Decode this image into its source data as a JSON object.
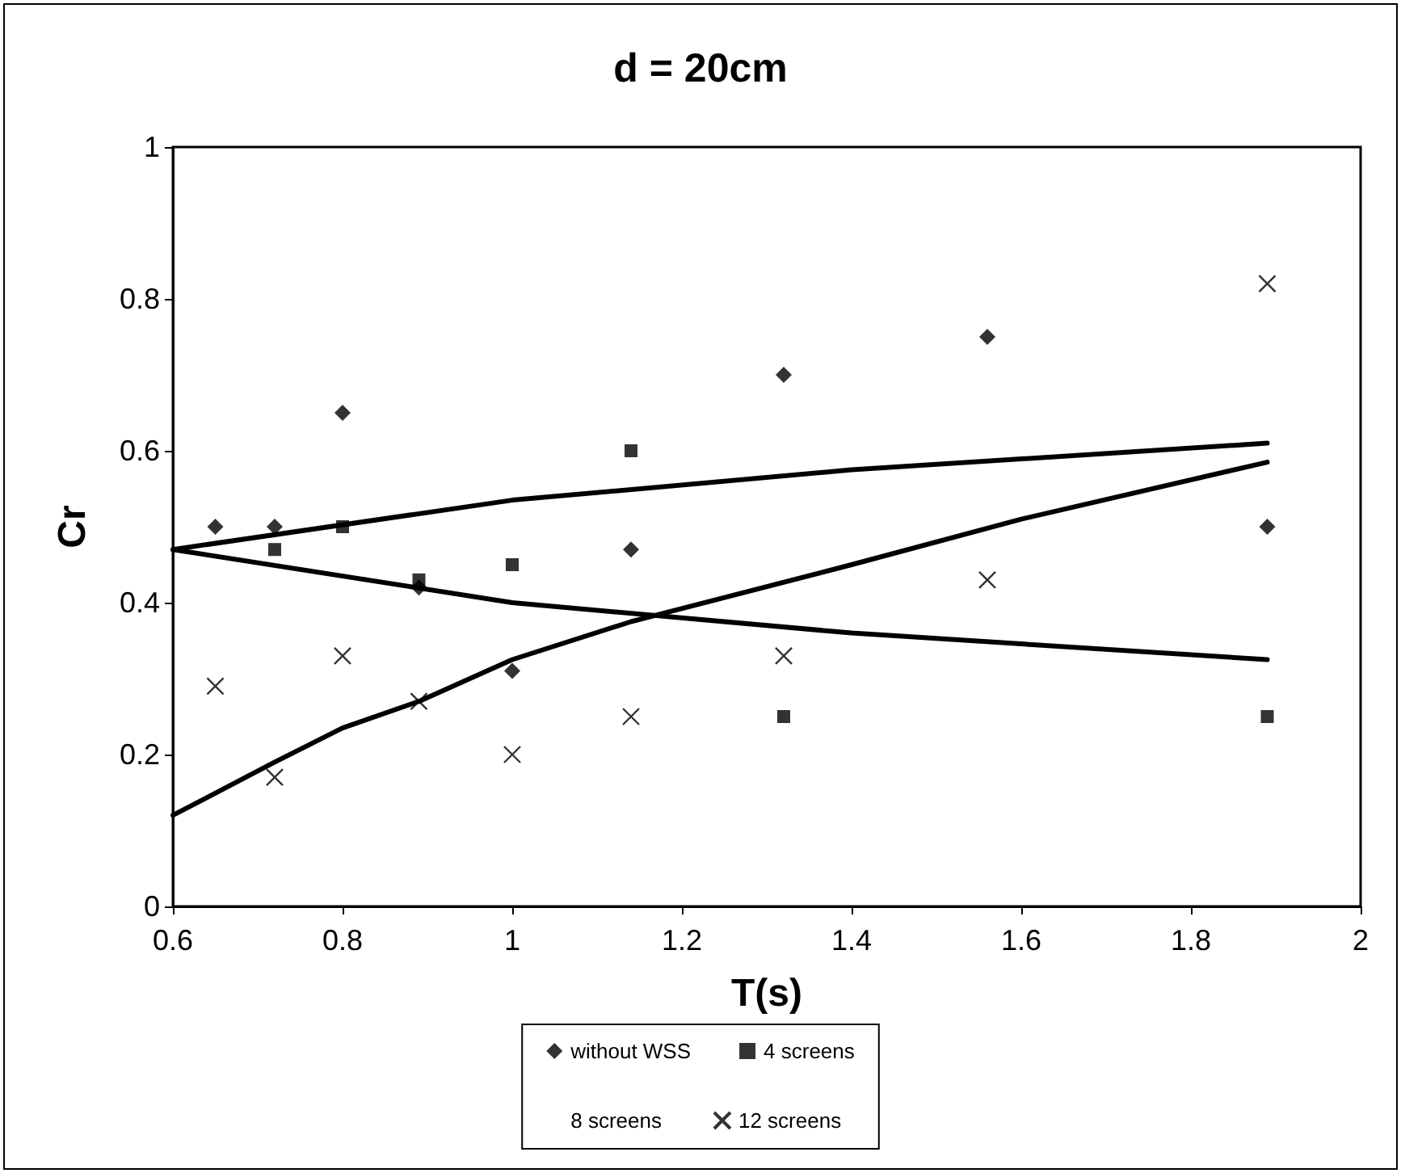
{
  "chart_data": {
    "type": "scatter",
    "title": "d = 20cm",
    "xlabel": "T(s)",
    "ylabel": "Cr",
    "xlim": [
      0.6,
      2
    ],
    "xticks": [
      0.6,
      0.8,
      1,
      1.2,
      1.4,
      1.6,
      1.8,
      2
    ],
    "ylim": [
      0,
      1
    ],
    "yticks": [
      0,
      0.2,
      0.4,
      0.6,
      0.8,
      1
    ],
    "grid": false,
    "legend": "bottom",
    "series": [
      {
        "name": "without WSS",
        "color": "#000000",
        "marker": "diamond",
        "x": [
          0.65,
          0.72,
          0.8,
          0.89,
          1.0,
          1.14,
          1.32,
          1.56,
          1.89
        ],
        "values": [
          0.5,
          0.5,
          0.65,
          0.42,
          0.31,
          0.47,
          0.7,
          0.75,
          0.5
        ]
      },
      {
        "name": "4 screens",
        "color": "#000000",
        "marker": "square",
        "x": [
          0.72,
          0.8,
          0.89,
          1.0,
          1.14,
          1.32,
          1.89
        ],
        "values": [
          0.47,
          0.5,
          0.43,
          0.45,
          0.6,
          0.25,
          0.25
        ]
      },
      {
        "name": "8 screens",
        "marker": "none"
      },
      {
        "name": "12 screens",
        "color": "#000000",
        "marker": "cross",
        "x": [
          0.65,
          0.72,
          0.8,
          0.89,
          1.0,
          1.14,
          1.32,
          1.56,
          1.89
        ],
        "values": [
          0.29,
          0.17,
          0.33,
          0.27,
          0.2,
          0.25,
          0.33,
          0.43,
          0.82
        ]
      },
      {
        "type": "line",
        "color": "#000000",
        "marker": "none",
        "x": [
          0.6,
          1.0,
          1.4,
          1.89
        ],
        "values": [
          0.47,
          0.535,
          0.575,
          0.61
        ]
      },
      {
        "type": "line",
        "color": "#000000",
        "marker": "none",
        "x": [
          0.6,
          1.0,
          1.4,
          1.89
        ],
        "values": [
          0.47,
          0.4,
          0.36,
          0.325
        ]
      },
      {
        "type": "line",
        "color": "#000000",
        "marker": "none",
        "x": [
          0.6,
          0.72,
          0.8,
          0.89,
          1.0,
          1.14,
          1.4,
          1.6,
          1.89
        ],
        "values": [
          0.12,
          0.19,
          0.235,
          0.27,
          0.325,
          0.375,
          0.45,
          0.51,
          0.585
        ]
      }
    ]
  }
}
